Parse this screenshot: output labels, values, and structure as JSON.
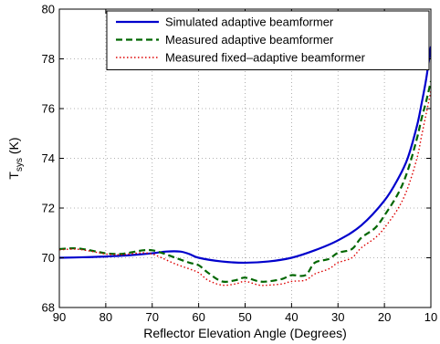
{
  "chart_data": {
    "type": "line",
    "title": "",
    "xlabel": "Reflector Elevation Angle (Degrees)",
    "ylabel_main": "T",
    "ylabel_sub": "sys",
    "ylabel_unit": " (K)",
    "xlim": [
      90,
      10
    ],
    "ylim": [
      68,
      80
    ],
    "xticks": [
      90,
      80,
      70,
      60,
      50,
      40,
      30,
      20,
      10
    ],
    "yticks": [
      68,
      70,
      72,
      74,
      76,
      78,
      80
    ],
    "grid": true,
    "legend_position": "top-right",
    "series": [
      {
        "name": "Simulated adaptive beamformer",
        "color": "#0000cc",
        "style": "solid",
        "x": [
          90,
          85,
          80,
          75,
          70,
          67,
          64,
          62,
          60,
          55,
          50,
          45,
          40,
          35,
          30,
          25,
          20,
          17,
          15,
          13,
          12,
          11,
          10
        ],
        "y": [
          70.0,
          70.02,
          70.05,
          70.1,
          70.18,
          70.25,
          70.25,
          70.15,
          70.0,
          69.85,
          69.8,
          69.85,
          70.0,
          70.3,
          70.7,
          71.3,
          72.3,
          73.2,
          74.0,
          75.3,
          76.2,
          77.2,
          78.5
        ]
      },
      {
        "name": "Measured adaptive beamformer",
        "color": "#006600",
        "style": "dashed",
        "x": [
          90,
          87,
          85,
          82,
          80,
          77,
          75,
          72,
          70,
          68,
          65,
          62,
          60,
          58,
          55,
          52,
          50,
          47,
          45,
          42,
          40,
          37,
          35,
          32,
          30,
          27,
          25,
          22,
          20,
          17,
          15,
          13,
          12,
          11,
          10
        ],
        "y": [
          70.35,
          70.38,
          70.35,
          70.25,
          70.18,
          70.15,
          70.2,
          70.3,
          70.3,
          70.2,
          70.0,
          69.8,
          69.7,
          69.4,
          69.05,
          69.1,
          69.2,
          69.05,
          69.05,
          69.15,
          69.3,
          69.3,
          69.8,
          69.95,
          70.2,
          70.35,
          70.8,
          71.2,
          71.7,
          72.6,
          73.5,
          74.8,
          75.6,
          76.3,
          77.1
        ]
      },
      {
        "name": "Measured fixed–adaptive beamformer",
        "color": "#dd0000",
        "style": "dotted",
        "x": [
          90,
          87,
          85,
          82,
          80,
          77,
          75,
          72,
          70,
          68,
          65,
          62,
          60,
          58,
          55,
          52,
          50,
          47,
          45,
          42,
          40,
          37,
          35,
          32,
          30,
          27,
          25,
          22,
          20,
          17,
          15,
          13,
          12,
          11,
          10
        ],
        "y": [
          70.32,
          70.35,
          70.32,
          70.22,
          70.15,
          70.12,
          70.15,
          70.2,
          70.15,
          70.0,
          69.75,
          69.55,
          69.4,
          69.1,
          68.9,
          68.95,
          69.05,
          68.9,
          68.9,
          68.95,
          69.05,
          69.1,
          69.35,
          69.55,
          69.8,
          70.0,
          70.4,
          70.8,
          71.2,
          72.0,
          72.8,
          74.0,
          74.9,
          75.8,
          76.7
        ]
      }
    ]
  }
}
